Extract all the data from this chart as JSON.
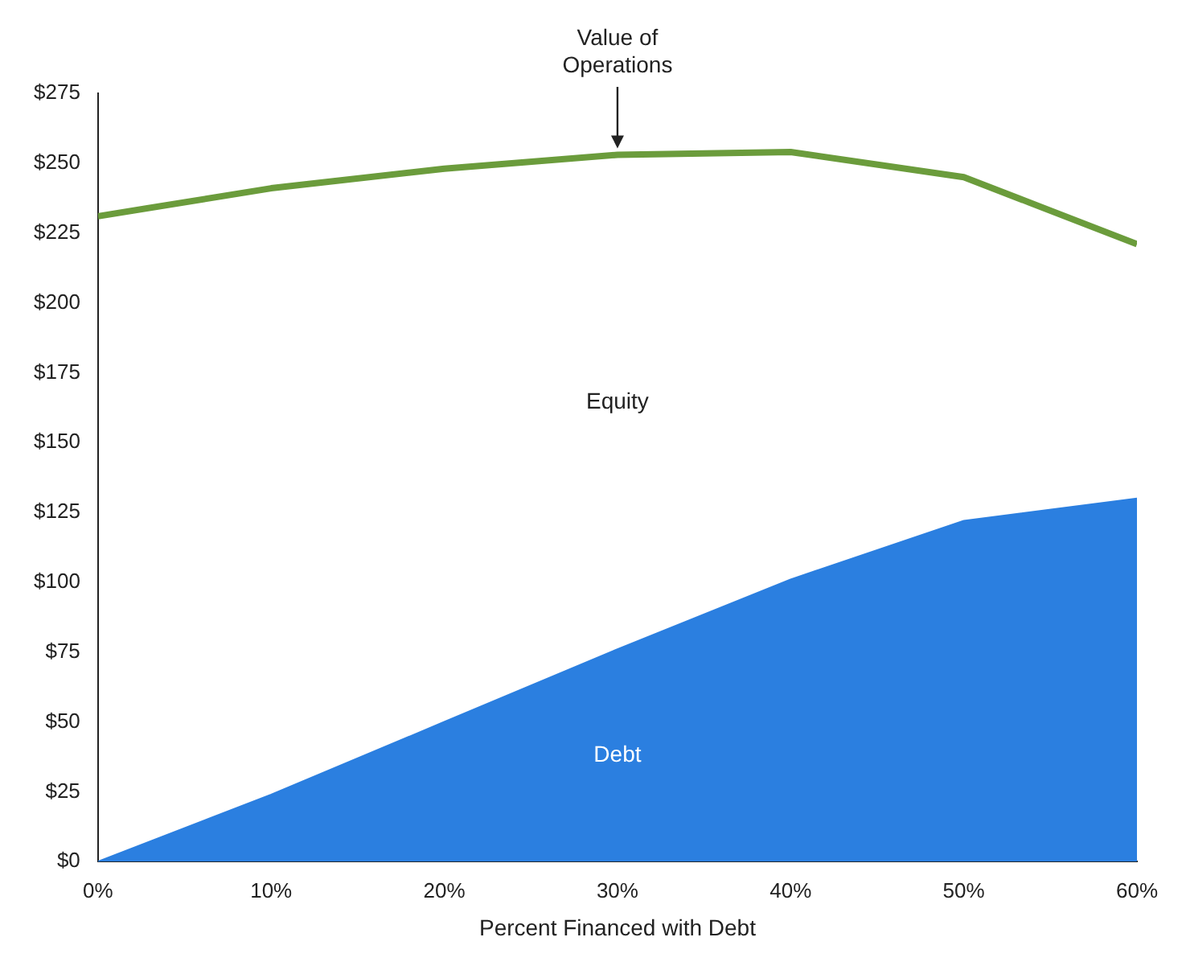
{
  "chart_data": {
    "type": "area",
    "xlabel": "Percent Financed with Debt",
    "x": [
      0,
      10,
      20,
      30,
      40,
      50,
      60
    ],
    "series": [
      {
        "name": "Debt",
        "type": "area",
        "color": "#2b7fe0",
        "values": [
          0,
          24,
          50,
          76,
          101,
          122,
          130
        ]
      },
      {
        "name": "Value of Operations",
        "type": "line",
        "color": "#6b9c3c",
        "values": [
          231,
          241,
          248,
          253,
          254,
          245,
          221
        ]
      }
    ],
    "annotations": [
      "Equity"
    ],
    "xlim": [
      0,
      60
    ],
    "ylim": [
      0,
      275
    ],
    "xticks": [
      {
        "value": 0,
        "label": "0%"
      },
      {
        "value": 10,
        "label": "10%"
      },
      {
        "value": 20,
        "label": "20%"
      },
      {
        "value": 30,
        "label": "30%"
      },
      {
        "value": 40,
        "label": "40%"
      },
      {
        "value": 50,
        "label": "50%"
      },
      {
        "value": 60,
        "label": "60%"
      }
    ],
    "yticks": [
      {
        "value": 0,
        "label": "$0"
      },
      {
        "value": 25,
        "label": "$25"
      },
      {
        "value": 50,
        "label": "$50"
      },
      {
        "value": 75,
        "label": "$75"
      },
      {
        "value": 100,
        "label": "$100"
      },
      {
        "value": 125,
        "label": "$125"
      },
      {
        "value": 150,
        "label": "$150"
      },
      {
        "value": 175,
        "label": "$175"
      },
      {
        "value": 200,
        "label": "$200"
      },
      {
        "value": 225,
        "label": "$225"
      },
      {
        "value": 250,
        "label": "$250"
      },
      {
        "value": 275,
        "label": "$275"
      }
    ],
    "grid": false,
    "legend": false,
    "marker": "none"
  }
}
